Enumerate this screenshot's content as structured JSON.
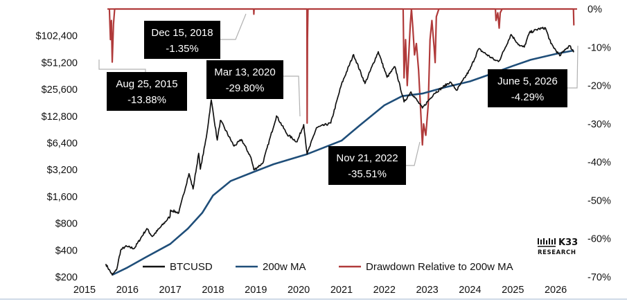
{
  "chart_data": {
    "type": "line",
    "x_ticks": [
      "2015",
      "2016",
      "2017",
      "2018",
      "2019",
      "2020",
      "2021",
      "2022",
      "2023",
      "2024",
      "2025",
      "2026"
    ],
    "y_left": {
      "scale": "log2",
      "ticks": [
        "$200",
        "$400",
        "$800",
        "$1,600",
        "$3,200",
        "$6,400",
        "$12,800",
        "$25,600",
        "$51,200",
        "$102,400"
      ],
      "range": [
        200,
        204800
      ]
    },
    "y_right": {
      "ticks": [
        "0%",
        "-10%",
        "-20%",
        "-30%",
        "-40%",
        "-50%",
        "-60%",
        "-70%"
      ],
      "range": [
        -70,
        0
      ]
    },
    "series": [
      {
        "name": "BTCUSD",
        "color": "#111111",
        "axis": "left",
        "points": [
          [
            "2015-07-01",
            280
          ],
          [
            "2015-08-25",
            211
          ],
          [
            "2015-10-01",
            240
          ],
          [
            "2015-11-05",
            400
          ],
          [
            "2015-12-15",
            440
          ],
          [
            "2016-03-01",
            420
          ],
          [
            "2016-06-15",
            700
          ],
          [
            "2016-08-01",
            570
          ],
          [
            "2016-12-31",
            960
          ],
          [
            "2017-01-04",
            1130
          ],
          [
            "2017-03-15",
            1050
          ],
          [
            "2017-06-10",
            2900
          ],
          [
            "2017-07-15",
            1950
          ],
          [
            "2017-09-01",
            4900
          ],
          [
            "2017-09-15",
            3250
          ],
          [
            "2017-11-05",
            7400
          ],
          [
            "2017-12-17",
            19500
          ],
          [
            "2018-02-06",
            6900
          ],
          [
            "2018-03-05",
            11500
          ],
          [
            "2018-06-29",
            5900
          ],
          [
            "2018-09-01",
            7000
          ],
          [
            "2018-11-20",
            4400
          ],
          [
            "2018-12-15",
            3200
          ],
          [
            "2019-03-01",
            3800
          ],
          [
            "2019-06-26",
            12900
          ],
          [
            "2019-09-25",
            8000
          ],
          [
            "2019-12-18",
            6600
          ],
          [
            "2020-02-13",
            10300
          ],
          [
            "2020-03-13",
            4800
          ],
          [
            "2020-06-01",
            9500
          ],
          [
            "2020-10-01",
            10700
          ],
          [
            "2020-12-31",
            29000
          ],
          [
            "2021-04-14",
            63000
          ],
          [
            "2021-07-20",
            29800
          ],
          [
            "2021-11-10",
            68000
          ],
          [
            "2022-01-24",
            35000
          ],
          [
            "2022-04-01",
            46000
          ],
          [
            "2022-06-18",
            18500
          ],
          [
            "2022-08-15",
            24000
          ],
          [
            "2022-11-21",
            15800
          ],
          [
            "2023-03-01",
            23000
          ],
          [
            "2023-07-15",
            31000
          ],
          [
            "2023-09-10",
            25000
          ],
          [
            "2024-01-01",
            43000
          ],
          [
            "2024-03-14",
            73000
          ],
          [
            "2024-08-05",
            54000
          ],
          [
            "2024-09-06",
            53500
          ],
          [
            "2024-12-17",
            106000
          ],
          [
            "2025-02-28",
            79000
          ],
          [
            "2025-04-08",
            76500
          ],
          [
            "2025-05-22",
            111000
          ],
          [
            "2025-08-14",
            123000
          ],
          [
            "2025-10-06",
            125000
          ],
          [
            "2025-11-21",
            84000
          ],
          [
            "2026-02-05",
            61000
          ],
          [
            "2026-03-20",
            72000
          ],
          [
            "2026-05-01",
            79000
          ],
          [
            "2026-06-05",
            67000
          ]
        ]
      },
      {
        "name": "200w MA",
        "color": "#1f4e79",
        "axis": "left",
        "points": [
          [
            "2015-08-25",
            211
          ],
          [
            "2016-01-01",
            255
          ],
          [
            "2016-06-01",
            330
          ],
          [
            "2017-01-01",
            470
          ],
          [
            "2017-06-01",
            700
          ],
          [
            "2017-10-01",
            1050
          ],
          [
            "2018-01-01",
            1650
          ],
          [
            "2018-06-01",
            2400
          ],
          [
            "2019-01-01",
            3100
          ],
          [
            "2019-06-01",
            3700
          ],
          [
            "2020-01-01",
            4500
          ],
          [
            "2020-03-13",
            4800
          ],
          [
            "2021-01-01",
            6800
          ],
          [
            "2021-06-01",
            10000
          ],
          [
            "2022-01-01",
            17000
          ],
          [
            "2022-06-01",
            21500
          ],
          [
            "2022-11-21",
            23000
          ],
          [
            "2023-06-01",
            27000
          ],
          [
            "2024-01-01",
            31500
          ],
          [
            "2024-06-01",
            37000
          ],
          [
            "2025-01-01",
            47000
          ],
          [
            "2025-06-01",
            55000
          ],
          [
            "2026-01-01",
            64000
          ],
          [
            "2026-06-05",
            70000
          ]
        ]
      },
      {
        "name": "Drawdown Relative to 200w MA",
        "color": "#b03a3a",
        "axis": "right",
        "points": [
          [
            "2015-08-01",
            0
          ],
          [
            "2015-08-10",
            -8
          ],
          [
            "2015-08-18",
            -3
          ],
          [
            "2015-08-25",
            -13.88
          ],
          [
            "2015-09-05",
            -4
          ],
          [
            "2015-09-15",
            0
          ],
          [
            "2018-12-13",
            0
          ],
          [
            "2018-12-15",
            -1.35
          ],
          [
            "2018-12-17",
            0
          ],
          [
            "2020-03-11",
            0
          ],
          [
            "2020-03-13",
            -29.8
          ],
          [
            "2020-03-16",
            -8
          ],
          [
            "2020-03-20",
            0
          ],
          [
            "2022-06-10",
            0
          ],
          [
            "2022-06-18",
            -18
          ],
          [
            "2022-07-01",
            -8
          ],
          [
            "2022-07-15",
            -20
          ],
          [
            "2022-08-10",
            -4
          ],
          [
            "2022-08-20",
            0
          ],
          [
            "2022-09-01",
            -5
          ],
          [
            "2022-09-15",
            -12
          ],
          [
            "2022-10-01",
            -9
          ],
          [
            "2022-10-20",
            -16
          ],
          [
            "2022-11-09",
            -28
          ],
          [
            "2022-11-21",
            -35.51
          ],
          [
            "2022-12-01",
            -30
          ],
          [
            "2022-12-20",
            -33
          ],
          [
            "2023-01-10",
            -25
          ],
          [
            "2023-01-25",
            -8
          ],
          [
            "2023-02-10",
            -3
          ],
          [
            "2023-03-01",
            -10
          ],
          [
            "2023-03-10",
            -14
          ],
          [
            "2023-03-20",
            -2
          ],
          [
            "2023-04-10",
            0
          ],
          [
            "2024-08-05",
            0
          ],
          [
            "2024-08-10",
            -3
          ],
          [
            "2024-08-25",
            -1
          ],
          [
            "2024-09-06",
            -5
          ],
          [
            "2024-09-15",
            -1
          ],
          [
            "2024-10-01",
            0
          ],
          [
            "2026-06-01",
            0
          ],
          [
            "2026-06-05",
            -4.29
          ]
        ]
      }
    ],
    "annotations": [
      {
        "date": "2015-08-25",
        "line1": "Aug 25, 2015",
        "line2": "-13.88%"
      },
      {
        "date": "2018-12-15",
        "line1": "Dec 15, 2018",
        "line2": "-1.35%"
      },
      {
        "date": "2020-03-13",
        "line1": "Mar 13, 2020",
        "line2": "-29.80%"
      },
      {
        "date": "2022-11-21",
        "line1": "Nov 21, 2022",
        "line2": "-35.51%"
      },
      {
        "date": "2026-06-05",
        "line1": "June 5, 2026",
        "line2": "-4.29%"
      }
    ],
    "legend_position": "bottom"
  },
  "branding": {
    "logo_line1": "K33",
    "logo_line2": "RESEARCH"
  }
}
